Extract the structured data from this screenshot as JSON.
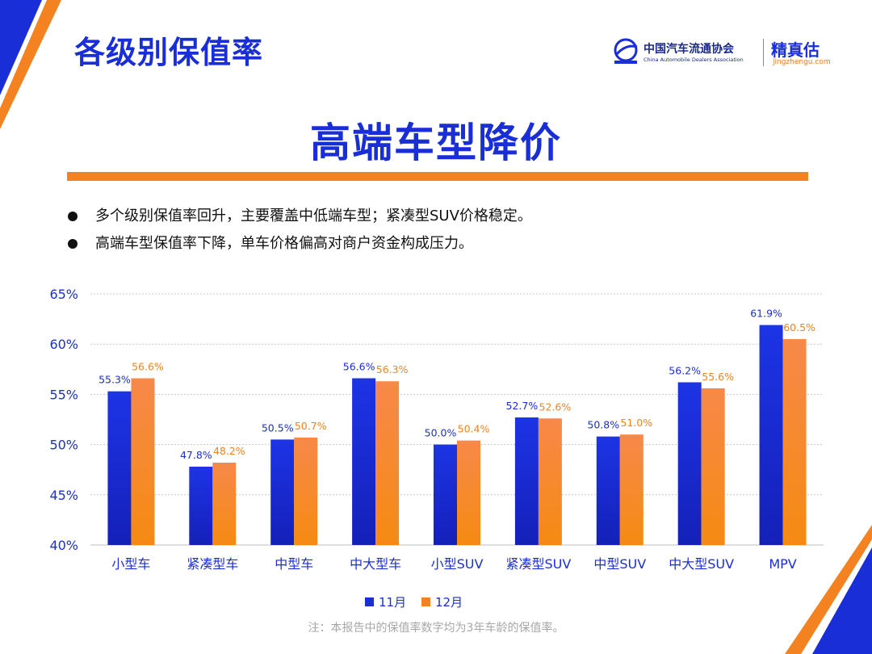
{
  "header": {
    "page_title": "各级别保值率",
    "logo_cada_cn": "中国汽车流通协会",
    "logo_cada_en": "China Automobile Dealers Association",
    "logo_jzg_cn": "精真估",
    "logo_jzg_url": "jingzhengu.com"
  },
  "headline": "高端车型降价",
  "bullets": [
    "多个级别保值率回升，主要覆盖中低端车型；紧凑型SUV价格稳定。",
    "高端车型保值率下降，单车价格偏高对商户资金构成压力。"
  ],
  "colors": {
    "accent_blue": "#1a2ed8",
    "accent_orange": "#f58220",
    "series_nov": "#1a2ed8",
    "series_dec": "#f58220"
  },
  "chart_data": {
    "type": "bar",
    "categories": [
      "小型车",
      "紧凑型车",
      "中型车",
      "中大型车",
      "小型SUV",
      "紧凑型SUV",
      "中型SUV",
      "中大型SUV",
      "MPV"
    ],
    "series": [
      {
        "name": "11月",
        "values": [
          55.3,
          47.8,
          50.5,
          56.6,
          50.0,
          52.7,
          50.8,
          56.2,
          61.9
        ],
        "labels": [
          "55.3%",
          "47.8%",
          "50.5%",
          "56.6%",
          "50.0%",
          "52.7%",
          "50.8%",
          "56.2%",
          "61.9%"
        ]
      },
      {
        "name": "12月",
        "values": [
          56.6,
          48.2,
          50.7,
          56.3,
          50.4,
          52.6,
          51.0,
          55.6,
          60.5
        ],
        "labels": [
          "56.6%",
          "48.2%",
          "50.7%",
          "56.3%",
          "50.4%",
          "52.6%",
          "51.0%",
          "55.6%",
          "60.5%"
        ]
      }
    ],
    "ylim": [
      40,
      65
    ],
    "yticks": [
      40,
      45,
      50,
      55,
      60,
      65
    ],
    "ytick_labels": [
      "40%",
      "45%",
      "50%",
      "55%",
      "60%",
      "65%"
    ],
    "grid": true,
    "legend_position": "bottom-center"
  },
  "footnote": "注：本报告中的保值率数字均为3年车龄的保值率。"
}
